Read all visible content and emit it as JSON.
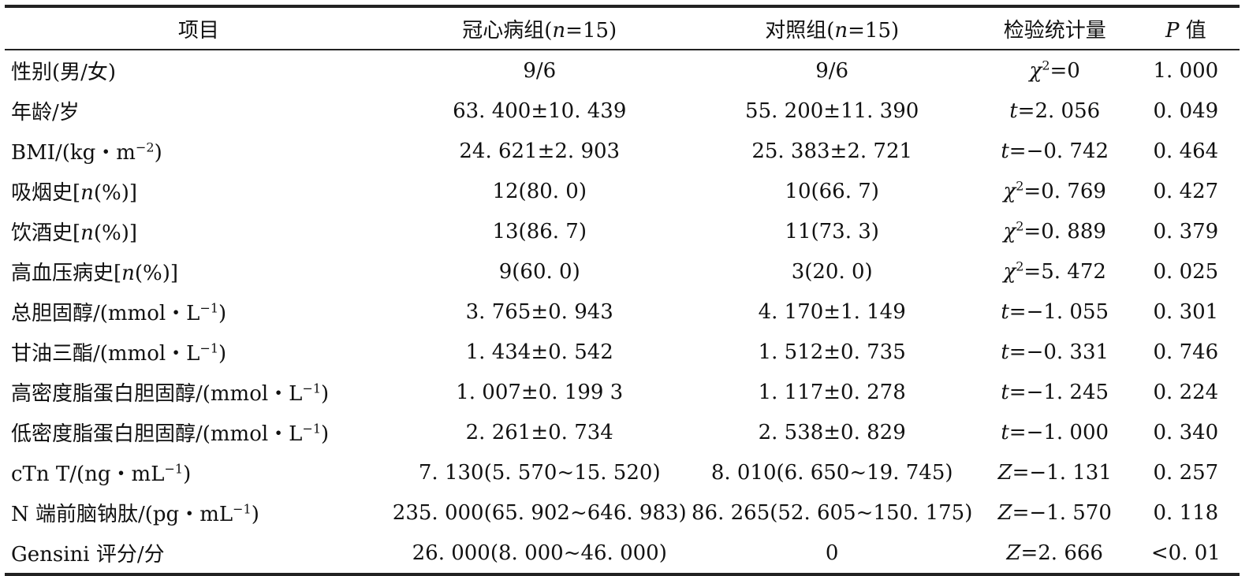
{
  "table": {
    "headers": {
      "item": "项目",
      "chd_prefix": "冠心病组(",
      "control_prefix": "对照组(",
      "n_var": "n",
      "n_rest": "=15)",
      "statistic": "检验统计量",
      "p_var": "P",
      "p_rest": " 值"
    },
    "rows": [
      {
        "item": "性别(男/女)",
        "chd": "9/6",
        "control": "9/6",
        "stat_var": "χ",
        "stat_sup": "2",
        "stat_val": "=0",
        "p": "1. 000"
      },
      {
        "item": "年龄/岁",
        "chd": "63. 400±10. 439",
        "control": "55. 200±11. 390",
        "stat_var": "t",
        "stat_sup": "",
        "stat_val": "=2. 056",
        "p": "0. 049"
      },
      {
        "item_pre": "BMI/(kg・m",
        "item_sup": "−2",
        "item_post": ")",
        "chd": "24. 621±2. 903",
        "control": "25. 383±2. 721",
        "stat_var": "t",
        "stat_sup": "",
        "stat_val": "=−0. 742",
        "p": "0. 464"
      },
      {
        "item_pre": "吸烟史[",
        "item_var": "n",
        "item_post": "(%)]",
        "chd": "12(80. 0)",
        "control": "10(66. 7)",
        "stat_var": "χ",
        "stat_sup": "2",
        "stat_val": "=0. 769",
        "p": "0. 427"
      },
      {
        "item_pre": "饮酒史[",
        "item_var": "n",
        "item_post": "(%)]",
        "chd": "13(86. 7)",
        "control": "11(73. 3)",
        "stat_var": "χ",
        "stat_sup": "2",
        "stat_val": "=0. 889",
        "p": "0. 379"
      },
      {
        "item_pre": "高血压病史[",
        "item_var": "n",
        "item_post": "(%)]",
        "chd": "9(60. 0)",
        "control": "3(20. 0)",
        "stat_var": "χ",
        "stat_sup": "2",
        "stat_val": "=5. 472",
        "p": "0. 025"
      },
      {
        "item_pre": "总胆固醇/(mmol・L",
        "item_sup": "−1",
        "item_post": ")",
        "chd": "3. 765±0. 943",
        "control": "4. 170±1. 149",
        "stat_var": "t",
        "stat_sup": "",
        "stat_val": "=−1. 055",
        "p": "0. 301"
      },
      {
        "item_pre": "甘油三酯/(mmol・L",
        "item_sup": "−1",
        "item_post": ")",
        "chd": "1. 434±0. 542",
        "control": "1. 512±0. 735",
        "stat_var": "t",
        "stat_sup": "",
        "stat_val": "=−0. 331",
        "p": "0. 746"
      },
      {
        "item_pre": "高密度脂蛋白胆固醇/(mmol・L",
        "item_sup": "−1",
        "item_post": ")",
        "chd": "1. 007±0. 199 3",
        "control": "1. 117±0. 278",
        "stat_var": "t",
        "stat_sup": "",
        "stat_val": "=−1. 245",
        "p": "0. 224"
      },
      {
        "item_pre": "低密度脂蛋白胆固醇/(mmol・L",
        "item_sup": "−1",
        "item_post": ")",
        "chd": "2. 261±0. 734",
        "control": "2. 538±0. 829",
        "stat_var": "t",
        "stat_sup": "",
        "stat_val": "=−1. 000",
        "p": "0. 340"
      },
      {
        "item_pre": "cTn T/(ng・mL",
        "item_sup": "−1",
        "item_post": ")",
        "chd": "7. 130(5. 570~15. 520)",
        "control": "8. 010(6. 650~19. 745)",
        "stat_var": "Z",
        "stat_sup": "",
        "stat_val": "=−1. 131",
        "p": "0. 257"
      },
      {
        "item_pre": "N 端前脑钠肽/(pg・mL",
        "item_sup": "−1",
        "item_post": ")",
        "chd": "235. 000(65. 902~646. 983)",
        "control": "86. 265(52. 605~150. 175)",
        "stat_var": "Z",
        "stat_sup": "",
        "stat_val": "=−1. 570",
        "p": "0. 118"
      },
      {
        "item": "Gensini 评分/分",
        "chd": "26. 000(8. 000~46. 000)",
        "control": "0",
        "stat_var": "Z",
        "stat_sup": "",
        "stat_val": "=2. 666",
        "p": "<0. 01"
      }
    ]
  }
}
